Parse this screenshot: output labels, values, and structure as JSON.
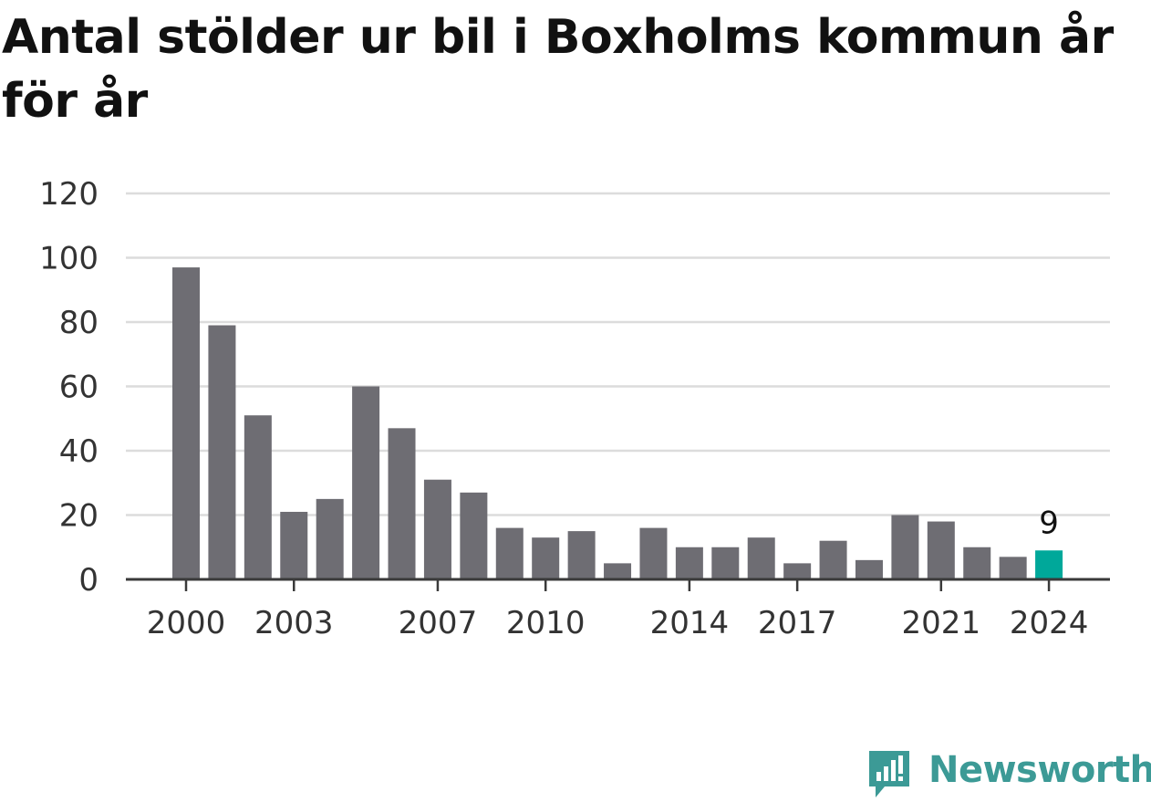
{
  "title": "Antal stölder ur bil i Boxholms kommun år för år",
  "chart_data": {
    "type": "bar",
    "title": "Antal stölder ur bil i Boxholms kommun år för år",
    "xlabel": "",
    "ylabel": "",
    "ylim": [
      0,
      120
    ],
    "yticks": [
      "0",
      "20",
      "40",
      "60",
      "80",
      "100",
      "120"
    ],
    "xticks": [
      "2000",
      "2003",
      "2007",
      "2010",
      "2014",
      "2017",
      "2021",
      "2024"
    ],
    "grid": true,
    "categories": [
      "2000",
      "2001",
      "2002",
      "2003",
      "2004",
      "2005",
      "2006",
      "2007",
      "2008",
      "2009",
      "2010",
      "2011",
      "2012",
      "2013",
      "2014",
      "2015",
      "2016",
      "2017",
      "2018",
      "2019",
      "2020",
      "2021",
      "2022",
      "2023",
      "2024"
    ],
    "values": [
      97,
      79,
      51,
      21,
      25,
      60,
      47,
      31,
      27,
      16,
      13,
      15,
      5,
      16,
      10,
      10,
      13,
      5,
      12,
      6,
      20,
      18,
      10,
      7,
      9
    ],
    "highlight": {
      "category": "2024",
      "label": "9"
    },
    "colors": {
      "bar": "#6e6d73",
      "highlight": "#00a89a",
      "grid": "#dcdcdc",
      "axis": "#3a3a3a"
    }
  },
  "brand": {
    "name": "Newsworthy",
    "icon": "newsworthy-logo-icon",
    "color": "#3c9a96"
  }
}
